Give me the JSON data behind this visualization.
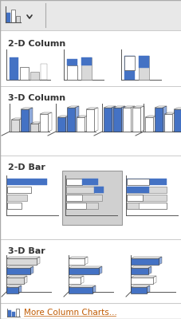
{
  "bg_color": "#ffffff",
  "border_color": "#cccccc",
  "blue": "#4472C4",
  "light_blue": "#9DC3E6",
  "gray": "#A9A9A9",
  "light_gray": "#D9D9D9",
  "white": "#ffffff",
  "selected_bg": "#D0D0D0",
  "text_color": "#C05A00",
  "header_color": "#333333",
  "section_headers": [
    "2-D Column",
    "3-D Column",
    "2-D Bar",
    "3-D Bar"
  ],
  "footer_text": "More Column Charts...",
  "toolbar_bg": "#E8E8E8"
}
